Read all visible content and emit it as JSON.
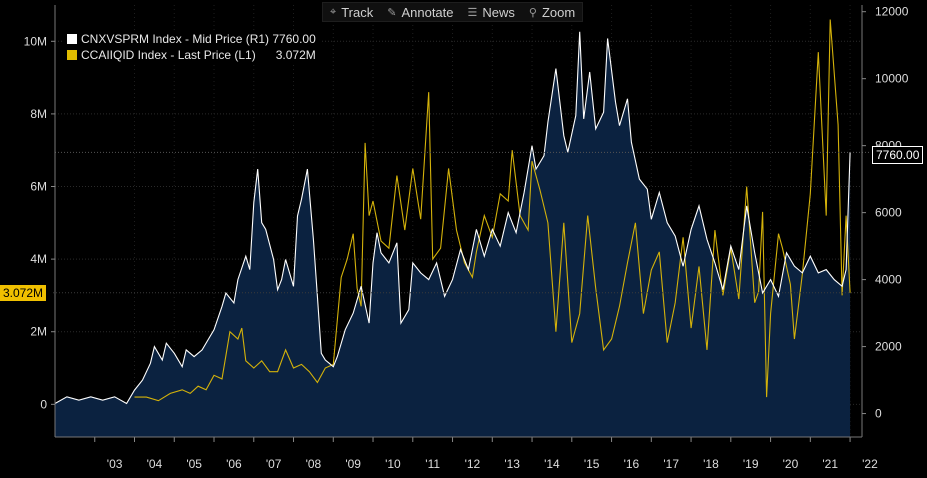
{
  "toolbar": {
    "items": [
      {
        "label": "Track",
        "icon": "crosshair-icon",
        "glyph": "⌖"
      },
      {
        "label": "Annotate",
        "icon": "pencil-icon",
        "glyph": "✎"
      },
      {
        "label": "News",
        "icon": "news-icon",
        "glyph": "☰"
      },
      {
        "label": "Zoom",
        "icon": "zoom-icon",
        "glyph": "⚲"
      }
    ]
  },
  "legend": {
    "series1": "CNXVSPRM Index - Mid Price (R1) 7760.00",
    "series2": "CCAIIQID Index - Last Price (L1)      3.072M"
  },
  "tags": {
    "right_last": "7760.00",
    "left_last": "3.072M"
  },
  "colors": {
    "navy_fill": "#0b2240",
    "white_line": "#ffffff",
    "gold_line": "#d4b20a",
    "gold_tag": "#f0c000"
  },
  "chart_data": {
    "type": "line",
    "title": "",
    "x_ticks": [
      "'03",
      "'04",
      "'05",
      "'06",
      "'07",
      "'08",
      "'09",
      "'10",
      "'11",
      "'12",
      "'13",
      "'14",
      "'15",
      "'16",
      "'17",
      "'18",
      "'19",
      "'20",
      "'21",
      "'22"
    ],
    "xlim": [
      2002.0,
      2022.3
    ],
    "left_axis": {
      "ticks": [
        "0",
        "2M",
        "4M",
        "6M",
        "8M",
        "10M"
      ],
      "tick_values": [
        0,
        2000000,
        4000000,
        6000000,
        8000000,
        10000000
      ],
      "range": [
        -900000,
        11000000
      ]
    },
    "right_axis": {
      "ticks": [
        "0",
        "2000",
        "4000",
        "6000",
        "8000",
        "10000",
        "12000"
      ],
      "tick_values": [
        0,
        2000,
        4000,
        6000,
        8000,
        10000,
        12000
      ],
      "range": [
        -700,
        12200
      ]
    },
    "series": [
      {
        "name": "CNXVSPRM Index - Mid Price (R1)",
        "axis": "right",
        "style": "area",
        "x": [
          2002.0,
          2002.3,
          2002.6,
          2002.9,
          2003.2,
          2003.5,
          2003.8,
          2004.0,
          2004.2,
          2004.4,
          2004.5,
          2004.7,
          2004.8,
          2005.0,
          2005.2,
          2005.3,
          2005.5,
          2005.7,
          2005.9,
          2006.0,
          2006.2,
          2006.3,
          2006.5,
          2006.6,
          2006.8,
          2006.9,
          2007.0,
          2007.1,
          2007.2,
          2007.3,
          2007.5,
          2007.6,
          2007.7,
          2007.8,
          2008.0,
          2008.1,
          2008.2,
          2008.35,
          2008.5,
          2008.6,
          2008.7,
          2008.8,
          2008.9,
          2009.0,
          2009.1,
          2009.3,
          2009.5,
          2009.7,
          2009.9,
          2010.0,
          2010.1,
          2010.2,
          2010.4,
          2010.6,
          2010.7,
          2010.9,
          2011.0,
          2011.2,
          2011.4,
          2011.6,
          2011.8,
          2012.0,
          2012.2,
          2012.4,
          2012.6,
          2012.8,
          2013.0,
          2013.2,
          2013.4,
          2013.6,
          2013.8,
          2014.0,
          2014.1,
          2014.3,
          2014.4,
          2014.6,
          2014.8,
          2014.9,
          2015.1,
          2015.2,
          2015.3,
          2015.45,
          2015.6,
          2015.8,
          2015.9,
          2016.1,
          2016.2,
          2016.4,
          2016.5,
          2016.7,
          2016.9,
          2017.0,
          2017.2,
          2017.4,
          2017.6,
          2017.8,
          2018.0,
          2018.2,
          2018.4,
          2018.6,
          2018.8,
          2019.0,
          2019.2,
          2019.4,
          2019.6,
          2019.8,
          2020.0,
          2020.2,
          2020.4,
          2020.6,
          2020.8,
          2021.0,
          2021.2,
          2021.4,
          2021.6,
          2021.8,
          2021.9,
          2022.0
        ],
        "y": [
          300,
          500,
          400,
          500,
          400,
          500,
          300,
          700,
          1000,
          1500,
          2000,
          1600,
          2100,
          1800,
          1400,
          1900,
          1700,
          1900,
          2300,
          2500,
          3200,
          3600,
          3300,
          4000,
          4700,
          4300,
          6300,
          7300,
          5700,
          5500,
          4600,
          3700,
          4000,
          4600,
          3800,
          5900,
          6400,
          7300,
          5200,
          3500,
          1800,
          1600,
          1500,
          1400,
          1700,
          2500,
          3000,
          3800,
          2700,
          4500,
          5400,
          4800,
          4500,
          5100,
          2700,
          3100,
          4500,
          4200,
          4000,
          4500,
          3500,
          4000,
          4900,
          4300,
          5500,
          4700,
          5500,
          5000,
          6000,
          5400,
          6600,
          8000,
          7300,
          7700,
          8700,
          10300,
          8300,
          7800,
          8900,
          11400,
          8800,
          10200,
          8500,
          9000,
          11200,
          9300,
          8600,
          9400,
          8100,
          7000,
          6700,
          5800,
          6600,
          5700,
          5300,
          4400,
          5500,
          6200,
          5200,
          4500,
          3700,
          5000,
          4300,
          6200,
          4800,
          3600,
          4000,
          3500,
          4800,
          4400,
          4200,
          4700,
          4200,
          4300,
          4000,
          3800,
          4300,
          7800
        ]
      },
      {
        "name": "CCAIIQID Index - Last Price (L1)",
        "axis": "left",
        "style": "line",
        "x": [
          2004.0,
          2004.3,
          2004.6,
          2004.9,
          2005.2,
          2005.4,
          2005.6,
          2005.8,
          2006.0,
          2006.2,
          2006.4,
          2006.6,
          2006.7,
          2006.8,
          2007.0,
          2007.2,
          2007.4,
          2007.6,
          2007.8,
          2008.0,
          2008.2,
          2008.4,
          2008.6,
          2008.8,
          2009.0,
          2009.2,
          2009.35,
          2009.5,
          2009.6,
          2009.7,
          2009.8,
          2009.9,
          2010.0,
          2010.2,
          2010.4,
          2010.6,
          2010.8,
          2011.0,
          2011.2,
          2011.4,
          2011.5,
          2011.7,
          2011.9,
          2012.1,
          2012.3,
          2012.5,
          2012.6,
          2012.8,
          2013.0,
          2013.2,
          2013.4,
          2013.5,
          2013.7,
          2013.9,
          2014.0,
          2014.2,
          2014.4,
          2014.6,
          2014.8,
          2015.0,
          2015.2,
          2015.4,
          2015.6,
          2015.8,
          2016.0,
          2016.2,
          2016.4,
          2016.6,
          2016.8,
          2017.0,
          2017.2,
          2017.4,
          2017.6,
          2017.8,
          2018.0,
          2018.2,
          2018.4,
          2018.6,
          2018.8,
          2019.0,
          2019.2,
          2019.4,
          2019.6,
          2019.7,
          2019.8,
          2019.9,
          2020.0,
          2020.2,
          2020.3,
          2020.5,
          2020.6,
          2020.8,
          2021.0,
          2021.2,
          2021.4,
          2021.5,
          2021.7,
          2021.8,
          2021.9,
          2022.0
        ],
        "y": [
          200000,
          200000,
          100000,
          300000,
          400000,
          300000,
          500000,
          400000,
          800000,
          700000,
          2000000,
          1800000,
          2100000,
          1200000,
          1000000,
          1200000,
          900000,
          900000,
          1500000,
          1000000,
          1100000,
          900000,
          600000,
          1000000,
          1100000,
          3500000,
          4000000,
          4700000,
          3200000,
          2700000,
          7200000,
          5200000,
          5600000,
          4500000,
          4300000,
          6300000,
          4800000,
          6500000,
          5100000,
          8600000,
          4000000,
          4300000,
          6500000,
          4800000,
          3900000,
          3500000,
          4200000,
          5200000,
          4600000,
          5800000,
          5600000,
          7000000,
          5200000,
          4800000,
          6700000,
          5900000,
          5000000,
          2000000,
          5000000,
          1700000,
          2500000,
          5200000,
          3200000,
          1500000,
          1800000,
          2700000,
          3900000,
          5000000,
          2500000,
          3700000,
          4200000,
          1700000,
          2800000,
          4600000,
          2100000,
          3800000,
          1500000,
          4800000,
          3000000,
          4300000,
          2900000,
          6000000,
          2800000,
          3100000,
          5300000,
          200000,
          2500000,
          4700000,
          4300000,
          3300000,
          1800000,
          3600000,
          5800000,
          9700000,
          5200000,
          10600000,
          7700000,
          3000000,
          5200000,
          3072000
        ]
      }
    ]
  }
}
